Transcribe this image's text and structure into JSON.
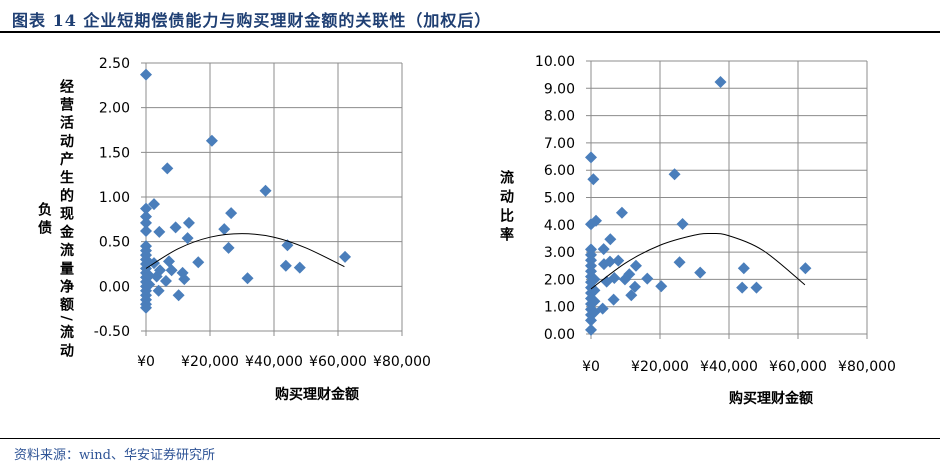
{
  "header": {
    "title": "图表 14  企业短期偿债能力与购买理财金额的关联性（加权后）"
  },
  "footer": {
    "source": "资料来源：wind、华安证券研究所"
  },
  "chart_data": [
    {
      "type": "scatter",
      "title": "",
      "xlabel": "购买理财金额",
      "ylabel": "经营活动产生的现金流量净额/流动负债",
      "xlim": [
        0,
        80000
      ],
      "ylim": [
        -0.5,
        2.5
      ],
      "xticks": [
        "¥0",
        "¥20,000",
        "¥40,000",
        "¥60,000",
        "¥80,000"
      ],
      "xtick_values": [
        0,
        20000,
        40000,
        60000,
        80000
      ],
      "yticks": [
        "-0.50",
        "0.00",
        "0.50",
        "1.00",
        "1.50",
        "2.00",
        "2.50"
      ],
      "ytick_values": [
        -0.5,
        0,
        0.5,
        1,
        1.5,
        2,
        2.5
      ],
      "grid": true,
      "marker_color": "#4a7ebb",
      "points": [
        [
          0,
          2.37
        ],
        [
          20600,
          1.63
        ],
        [
          6660,
          1.32
        ],
        [
          37350,
          1.07
        ],
        [
          26600,
          0.82
        ],
        [
          2500,
          0.92
        ],
        [
          0,
          0.87
        ],
        [
          0,
          0.78
        ],
        [
          0,
          0.71
        ],
        [
          0,
          0.62
        ],
        [
          4160,
          0.61
        ],
        [
          9260,
          0.66
        ],
        [
          13420,
          0.71
        ],
        [
          13000,
          0.54
        ],
        [
          24450,
          0.64
        ],
        [
          25800,
          0.43
        ],
        [
          16330,
          0.27
        ],
        [
          44200,
          0.46
        ],
        [
          43700,
          0.23
        ],
        [
          48060,
          0.21
        ],
        [
          62200,
          0.33
        ],
        [
          31730,
          0.09
        ],
        [
          11440,
          0.15
        ],
        [
          11960,
          0.08
        ],
        [
          10200,
          -0.1
        ],
        [
          7180,
          0.28
        ],
        [
          8010,
          0.18
        ],
        [
          3950,
          -0.05
        ],
        [
          6240,
          0.06
        ],
        [
          3330,
          0.11
        ],
        [
          4370,
          0.18
        ],
        [
          2500,
          0.26
        ],
        [
          0,
          0.45
        ],
        [
          0,
          0.4
        ],
        [
          0,
          0.35
        ],
        [
          0,
          0.3
        ],
        [
          0,
          0.25
        ],
        [
          0,
          0.2
        ],
        [
          0,
          0.15
        ],
        [
          0,
          0.1
        ],
        [
          0,
          0.05
        ],
        [
          0,
          0.0
        ],
        [
          0,
          -0.05
        ],
        [
          0,
          -0.1
        ],
        [
          0,
          -0.15
        ],
        [
          0,
          -0.2
        ],
        [
          0,
          -0.24
        ],
        [
          1000,
          0.12
        ],
        [
          1000,
          0.02
        ]
      ],
      "trendline": {
        "type": "polynomial",
        "points": [
          [
            0,
            0.2
          ],
          [
            10000,
            0.42
          ],
          [
            20000,
            0.55
          ],
          [
            30000,
            0.59
          ],
          [
            40000,
            0.55
          ],
          [
            50000,
            0.43
          ],
          [
            62000,
            0.22
          ]
        ]
      }
    },
    {
      "type": "scatter",
      "title": "",
      "xlabel": "购买理财金额",
      "ylabel": "流动比率",
      "xlim": [
        0,
        80000
      ],
      "ylim": [
        0,
        10
      ],
      "xticks": [
        "¥0",
        "¥20,000",
        "¥40,000",
        "¥60,000",
        "¥80,000"
      ],
      "xtick_values": [
        0,
        20000,
        40000,
        60000,
        80000
      ],
      "yticks": [
        "0.00",
        "1.00",
        "2.00",
        "3.00",
        "4.00",
        "5.00",
        "6.00",
        "7.00",
        "8.00",
        "9.00",
        "10.00"
      ],
      "ytick_values": [
        0,
        1,
        2,
        3,
        4,
        5,
        6,
        7,
        8,
        9,
        10
      ],
      "grid": true,
      "marker_color": "#4a7ebb",
      "points": [
        [
          37540,
          9.23
        ],
        [
          0,
          6.47
        ],
        [
          680,
          5.67
        ],
        [
          24220,
          5.85
        ],
        [
          8970,
          4.44
        ],
        [
          26540,
          4.03
        ],
        [
          1450,
          4.15
        ],
        [
          0,
          4.02
        ],
        [
          5600,
          3.47
        ],
        [
          3670,
          3.11
        ],
        [
          3760,
          2.56
        ],
        [
          5500,
          2.65
        ],
        [
          7910,
          2.69
        ],
        [
          25670,
          2.63
        ],
        [
          13030,
          2.5
        ],
        [
          44290,
          2.41
        ],
        [
          62150,
          2.41
        ],
        [
          31650,
          2.25
        ],
        [
          11100,
          2.19
        ],
        [
          16310,
          2.03
        ],
        [
          9840,
          2.0
        ],
        [
          6760,
          2.05
        ],
        [
          20360,
          1.75
        ],
        [
          43810,
          1.7
        ],
        [
          47960,
          1.7
        ],
        [
          12740,
          1.73
        ],
        [
          11680,
          1.42
        ],
        [
          6560,
          1.26
        ],
        [
          3380,
          0.93
        ],
        [
          4540,
          1.92
        ],
        [
          0,
          0.15
        ],
        [
          0,
          0.5
        ],
        [
          0,
          0.7
        ],
        [
          0,
          0.9
        ],
        [
          0,
          1.1
        ],
        [
          0,
          1.3
        ],
        [
          0,
          1.5
        ],
        [
          0,
          1.7
        ],
        [
          0,
          1.9
        ],
        [
          0,
          2.1
        ],
        [
          0,
          2.3
        ],
        [
          0,
          2.5
        ],
        [
          0,
          2.7
        ],
        [
          0,
          2.9
        ],
        [
          0,
          3.1
        ],
        [
          1000,
          0.8
        ],
        [
          1000,
          1.2
        ],
        [
          1000,
          1.6
        ],
        [
          1000,
          2.0
        ]
      ],
      "trendline": {
        "type": "polynomial",
        "points": [
          [
            0,
            1.65
          ],
          [
            10000,
            2.6
          ],
          [
            20000,
            3.25
          ],
          [
            30000,
            3.62
          ],
          [
            35000,
            3.68
          ],
          [
            40000,
            3.6
          ],
          [
            50000,
            3.05
          ],
          [
            62000,
            1.8
          ]
        ]
      }
    }
  ]
}
